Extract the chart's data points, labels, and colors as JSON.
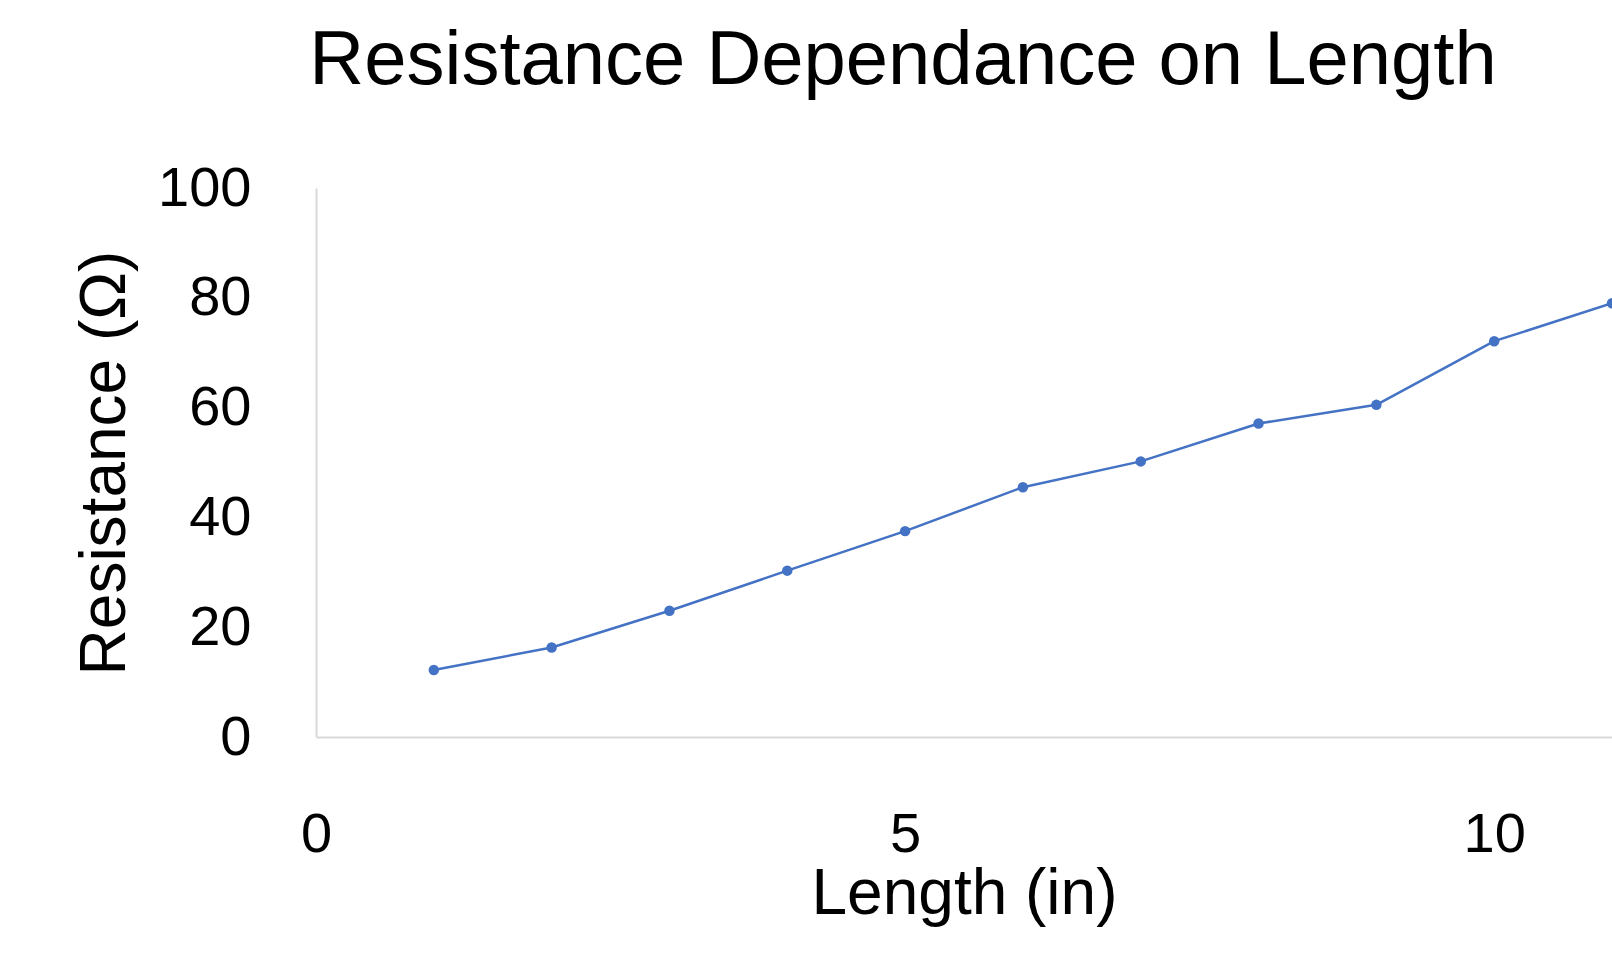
{
  "chart_data": {
    "type": "line",
    "title": "Resistance Dependance on Length",
    "xlabel": "Length (in)",
    "ylabel": "Resistance (Ω)",
    "x": [
      1,
      2,
      3,
      4,
      5,
      6,
      7,
      8,
      9,
      10,
      11
    ],
    "series": [
      {
        "color": "#4472c4",
        "values": [
          12.2,
          16.3,
          23.0,
          30.3,
          37.5,
          45.5,
          50.2,
          57.1,
          60.5,
          72.1,
          79
        ]
      }
    ],
    "xlim": [
      0,
      11
    ],
    "xticks": [
      0,
      5,
      10
    ],
    "ylim": [
      0,
      100
    ],
    "yticks": [
      0,
      20,
      40,
      60,
      80,
      100
    ],
    "grid": false,
    "marker": "circle",
    "line_style": "solid"
  }
}
